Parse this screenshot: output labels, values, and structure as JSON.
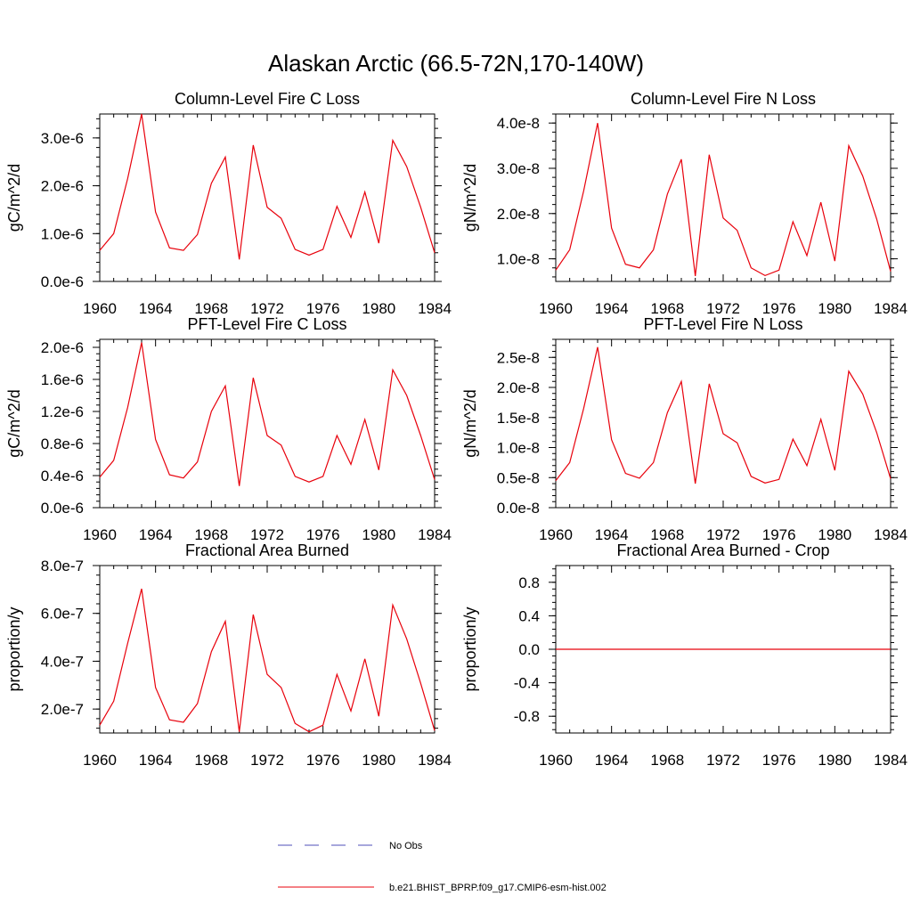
{
  "title": "Alaskan Arctic (66.5-72N,170-140W)",
  "colors": {
    "model": "#e8000b",
    "obs": "#4f4fb8",
    "axis": "#000000"
  },
  "legend": [
    {
      "label": "No Obs",
      "style": "dashed",
      "color": "#4f4fb8"
    },
    {
      "label": "b.e21.BHIST_BPRP.f09_g17.CMIP6-esm-hist.002",
      "style": "solid",
      "color": "#e8000b"
    }
  ],
  "chart_data": [
    {
      "type": "line",
      "title": "Column-Level Fire C Loss",
      "ylabel": "gC/m^2/d",
      "xlim": [
        1960,
        1984
      ],
      "ylim": [
        0,
        3.5e-06
      ],
      "xticks": [
        1960,
        1964,
        1968,
        1972,
        1976,
        1980,
        1984
      ],
      "xtick_labels": [
        "1960",
        "1964",
        "1968",
        "1972",
        "1976",
        "1980",
        "1984"
      ],
      "yticks": [
        0,
        1e-06,
        2e-06,
        3e-06
      ],
      "ytick_labels": [
        "0.0e-6",
        "1.0e-6",
        "2.0e-6",
        "3.0e-6"
      ],
      "x": [
        1960,
        1961,
        1962,
        1963,
        1964,
        1965,
        1966,
        1967,
        1968,
        1969,
        1970,
        1971,
        1972,
        1973,
        1974,
        1975,
        1976,
        1977,
        1978,
        1979,
        1980,
        1981,
        1982,
        1983,
        1984
      ],
      "series": [
        {
          "values": [
            6.5e-07,
            1e-06,
            2.15e-06,
            3.5e-06,
            1.45e-06,
            7e-07,
            6.5e-07,
            9.8e-07,
            2.05e-06,
            2.6e-06,
            4.6e-07,
            2.85e-06,
            1.55e-06,
            1.32e-06,
            6.7e-07,
            5.5e-07,
            6.7e-07,
            1.57e-06,
            9.2e-07,
            1.87e-06,
            8e-07,
            2.95e-06,
            2.4e-06,
            1.55e-06,
            6e-07
          ]
        }
      ]
    },
    {
      "type": "line",
      "title": "Column-Level Fire N Loss",
      "ylabel": "gN/m^2/d",
      "xlim": [
        1960,
        1984
      ],
      "ylim": [
        5e-09,
        4.2e-08
      ],
      "xticks": [
        1960,
        1964,
        1968,
        1972,
        1976,
        1980,
        1984
      ],
      "xtick_labels": [
        "1960",
        "1964",
        "1968",
        "1972",
        "1976",
        "1980",
        "1984"
      ],
      "yticks": [
        1e-08,
        2e-08,
        3e-08,
        4e-08
      ],
      "ytick_labels": [
        "1.0e-8",
        "2.0e-8",
        "3.0e-8",
        "4.0e-8"
      ],
      "x": [
        1960,
        1961,
        1962,
        1963,
        1964,
        1965,
        1966,
        1967,
        1968,
        1969,
        1970,
        1971,
        1972,
        1973,
        1974,
        1975,
        1976,
        1977,
        1978,
        1979,
        1980,
        1981,
        1982,
        1983,
        1984
      ],
      "series": [
        {
          "values": [
            7.5e-09,
            1.2e-08,
            2.5e-08,
            4e-08,
            1.68e-08,
            8.8e-09,
            8e-09,
            1.2e-08,
            2.43e-08,
            3.2e-08,
            6.2e-09,
            3.3e-08,
            1.9e-08,
            1.63e-08,
            8e-09,
            6.3e-09,
            7.5e-09,
            1.82e-08,
            1.07e-08,
            2.25e-08,
            9.5e-09,
            3.5e-08,
            2.83e-08,
            1.88e-08,
            7.2e-09
          ]
        }
      ]
    },
    {
      "type": "line",
      "title": "PFT-Level Fire C Loss",
      "ylabel": "gC/m^2/d",
      "xlim": [
        1960,
        1984
      ],
      "ylim": [
        0,
        2.1e-06
      ],
      "xticks": [
        1960,
        1964,
        1968,
        1972,
        1976,
        1980,
        1984
      ],
      "xtick_labels": [
        "1960",
        "1964",
        "1968",
        "1972",
        "1976",
        "1980",
        "1984"
      ],
      "yticks": [
        0,
        4e-07,
        8e-07,
        1.2e-06,
        1.6e-06,
        2e-06
      ],
      "ytick_labels": [
        "0.0e-6",
        "0.4e-6",
        "0.8e-6",
        "1.2e-6",
        "1.6e-6",
        "2.0e-6"
      ],
      "x": [
        1960,
        1961,
        1962,
        1963,
        1964,
        1965,
        1966,
        1967,
        1968,
        1969,
        1970,
        1971,
        1972,
        1973,
        1974,
        1975,
        1976,
        1977,
        1978,
        1979,
        1980,
        1981,
        1982,
        1983,
        1984
      ],
      "series": [
        {
          "values": [
            3.8e-07,
            5.9e-07,
            1.25e-06,
            2.06e-06,
            8.5e-07,
            4.1e-07,
            3.7e-07,
            5.7e-07,
            1.2e-06,
            1.52e-06,
            2.7e-07,
            1.62e-06,
            9e-07,
            7.8e-07,
            3.9e-07,
            3.2e-07,
            3.9e-07,
            9e-07,
            5.4e-07,
            1.1e-06,
            4.7e-07,
            1.72e-06,
            1.4e-06,
            9e-07,
            3.5e-07
          ]
        }
      ]
    },
    {
      "type": "line",
      "title": "PFT-Level Fire N Loss",
      "ylabel": "gN/m^2/d",
      "xlim": [
        1960,
        1984
      ],
      "ylim": [
        0,
        2.8e-08
      ],
      "xticks": [
        1960,
        1964,
        1968,
        1972,
        1976,
        1980,
        1984
      ],
      "xtick_labels": [
        "1960",
        "1964",
        "1968",
        "1972",
        "1976",
        "1980",
        "1984"
      ],
      "yticks": [
        0,
        5e-09,
        1e-08,
        1.5e-08,
        2e-08,
        2.5e-08
      ],
      "ytick_labels": [
        "0.0e-8",
        "0.5e-8",
        "1.0e-8",
        "1.5e-8",
        "2.0e-8",
        "2.5e-8"
      ],
      "x": [
        1960,
        1961,
        1962,
        1963,
        1964,
        1965,
        1966,
        1967,
        1968,
        1969,
        1970,
        1971,
        1972,
        1973,
        1974,
        1975,
        1976,
        1977,
        1978,
        1979,
        1980,
        1981,
        1982,
        1983,
        1984
      ],
      "series": [
        {
          "values": [
            4.5e-09,
            7.5e-09,
            1.65e-08,
            2.67e-08,
            1.13e-08,
            5.7e-09,
            4.9e-09,
            7.5e-09,
            1.58e-08,
            2.1e-08,
            4e-09,
            2.06e-08,
            1.23e-08,
            1.08e-08,
            5.2e-09,
            4.1e-09,
            4.7e-09,
            1.14e-08,
            7e-09,
            1.47e-08,
            6.2e-09,
            2.27e-08,
            1.89e-08,
            1.25e-08,
            4.8e-09
          ]
        }
      ]
    },
    {
      "type": "line",
      "title": "Fractional Area Burned",
      "ylabel": "proportion/y",
      "xlim": [
        1960,
        1984
      ],
      "ylim": [
        1e-07,
        8e-07
      ],
      "xticks": [
        1960,
        1964,
        1968,
        1972,
        1976,
        1980,
        1984
      ],
      "xtick_labels": [
        "1960",
        "1964",
        "1968",
        "1972",
        "1976",
        "1980",
        "1984"
      ],
      "yticks": [
        2e-07,
        4e-07,
        6e-07,
        8e-07
      ],
      "ytick_labels": [
        "2.0e-7",
        "4.0e-7",
        "6.0e-7",
        "8.0e-7"
      ],
      "x": [
        1960,
        1961,
        1962,
        1963,
        1964,
        1965,
        1966,
        1967,
        1968,
        1969,
        1970,
        1971,
        1972,
        1973,
        1974,
        1975,
        1976,
        1977,
        1978,
        1979,
        1980,
        1981,
        1982,
        1983,
        1984
      ],
      "series": [
        {
          "values": [
            1.33e-07,
            2.33e-07,
            4.75e-07,
            7.03e-07,
            2.9e-07,
            1.55e-07,
            1.45e-07,
            2.23e-07,
            4.4e-07,
            5.67e-07,
            1.05e-07,
            5.95e-07,
            3.45e-07,
            2.9e-07,
            1.4e-07,
            1.05e-07,
            1.33e-07,
            3.45e-07,
            1.92e-07,
            4.1e-07,
            1.7e-07,
            6.35e-07,
            4.93e-07,
            3.08e-07,
            1.1e-07
          ]
        }
      ]
    },
    {
      "type": "line",
      "title": "Fractional Area Burned - Crop",
      "ylabel": "proportion/y",
      "xlim": [
        1960,
        1984
      ],
      "ylim": [
        -1.0,
        1.0
      ],
      "xticks": [
        1960,
        1964,
        1968,
        1972,
        1976,
        1980,
        1984
      ],
      "xtick_labels": [
        "1960",
        "1964",
        "1968",
        "1972",
        "1976",
        "1980",
        "1984"
      ],
      "yticks": [
        -0.8,
        -0.4,
        0.0,
        0.4,
        0.8
      ],
      "ytick_labels": [
        "-0.8",
        "-0.4",
        "0.0",
        "0.4",
        "0.8"
      ],
      "x": [
        1960,
        1961,
        1962,
        1963,
        1964,
        1965,
        1966,
        1967,
        1968,
        1969,
        1970,
        1971,
        1972,
        1973,
        1974,
        1975,
        1976,
        1977,
        1978,
        1979,
        1980,
        1981,
        1982,
        1983,
        1984
      ],
      "series": [
        {
          "values": [
            0,
            0,
            0,
            0,
            0,
            0,
            0,
            0,
            0,
            0,
            0,
            0,
            0,
            0,
            0,
            0,
            0,
            0,
            0,
            0,
            0,
            0,
            0,
            0,
            0
          ]
        }
      ]
    }
  ]
}
